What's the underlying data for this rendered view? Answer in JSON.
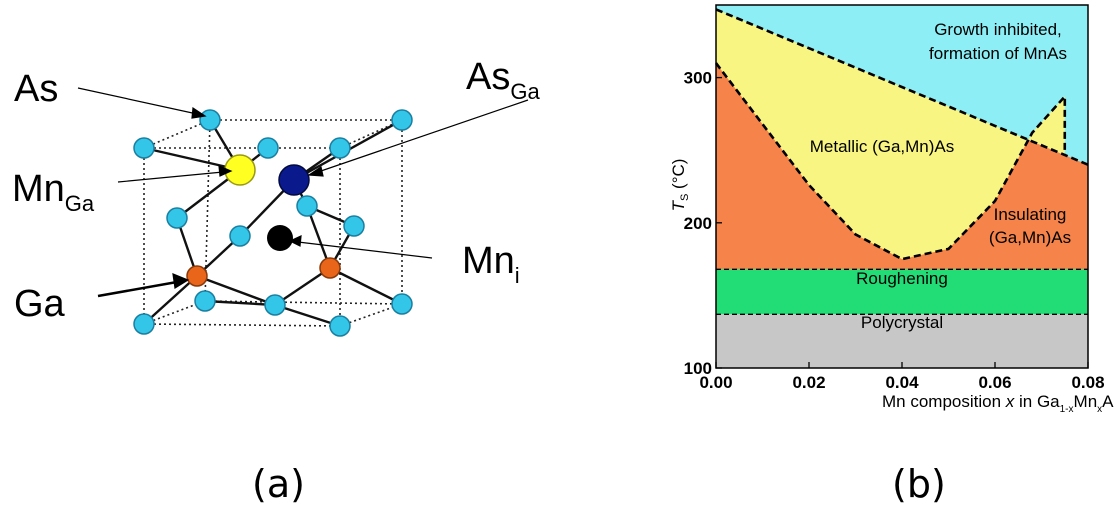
{
  "panel_a": {
    "caption": "(a)",
    "labels": {
      "as": "As",
      "as_ga_main": "As",
      "as_ga_sub": "Ga",
      "mn_ga_main": "Mn",
      "mn_ga_sub": "Ga",
      "mn_i_main": "Mn",
      "mn_i_sub": "i",
      "ga": "Ga"
    },
    "colors": {
      "as_atom": "#33c6e8",
      "ga_atom": "#e8651a",
      "mn_ga_atom": "#ffff22",
      "as_ga_atom": "#0a1a8c",
      "mn_i_atom": "#000000"
    }
  },
  "panel_b": {
    "caption": "(b)",
    "chart_data": {
      "type": "area",
      "x_axis": {
        "label_prefix": "Mn composition ",
        "label_var": "x",
        "label_mid": " in Ga",
        "label_sub1": "1-x",
        "label_mid2": "Mn",
        "label_sub2": "x",
        "label_suffix": "As",
        "ticks": [
          "0.00",
          "0.02",
          "0.04",
          "0.06",
          "0.08"
        ],
        "range": [
          0.0,
          0.08
        ]
      },
      "y_axis": {
        "label_main": "T",
        "label_sub": "S",
        "label_unit": " (°C)",
        "ticks": [
          "100",
          "200",
          "300"
        ],
        "range": [
          100,
          350
        ]
      },
      "regions": [
        {
          "name": "Growth inhibited, formation of MnAs",
          "color": "#8eeef5"
        },
        {
          "name": "Metallic (Ga,Mn)As",
          "color": "#f8f582"
        },
        {
          "name": "Insulating (Ga,Mn)As",
          "color": "#f5834a"
        },
        {
          "name": "Roughening",
          "color": "#22dc76"
        },
        {
          "name": "Polycrystal",
          "color": "#c7c7c7"
        }
      ],
      "region_labels": {
        "growth_line1": "Growth inhibited,",
        "growth_line2": "formation of MnAs",
        "metallic": "Metallic (Ga,Mn)As",
        "insulating_line1": "Insulating",
        "insulating_line2": "(Ga,Mn)As",
        "roughening": "Roughening",
        "polycrystal": "Polycrystal"
      },
      "boundaries": {
        "mnas_line": [
          [
            0.0,
            347
          ],
          [
            0.08,
            240
          ]
        ],
        "metallic_dome": [
          [
            0.0,
            310
          ],
          [
            0.01,
            268
          ],
          [
            0.02,
            226
          ],
          [
            0.03,
            192
          ],
          [
            0.04,
            175
          ],
          [
            0.05,
            182
          ],
          [
            0.06,
            215
          ],
          [
            0.068,
            262
          ],
          [
            0.075,
            287
          ]
        ],
        "roughening_top": 168,
        "roughening_bottom": 137
      }
    }
  }
}
